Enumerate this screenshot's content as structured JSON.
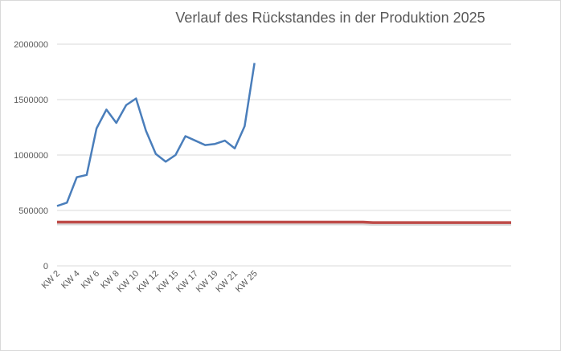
{
  "chart_data": {
    "type": "line",
    "title": "Verlauf des Rückstandes in der Produktion 2025",
    "categories": [
      "KW 2",
      null,
      "KW 4",
      null,
      "KW 6",
      null,
      "KW 8",
      null,
      "KW 10",
      null,
      "KW 12",
      null,
      "KW 15",
      null,
      "KW 17",
      null,
      "KW 19",
      null,
      "KW 21",
      null,
      "KW 25",
      null,
      null,
      null,
      null,
      null,
      null,
      null,
      null,
      null,
      null,
      null,
      null,
      null,
      null,
      null,
      null,
      null,
      null,
      null,
      null,
      null,
      null,
      null,
      null,
      null,
      null
    ],
    "series": [
      {
        "color": "#4a7ebb",
        "values": [
          540000,
          570000,
          800000,
          820000,
          1240000,
          1410000,
          1290000,
          1450000,
          1510000,
          1220000,
          1010000,
          940000,
          1000000,
          1170000,
          1130000,
          1090000,
          1100000,
          1130000,
          1060000,
          1260000,
          1830000,
          null,
          null,
          null,
          null,
          null,
          null,
          null,
          null,
          null,
          null,
          null,
          null,
          null,
          null,
          null,
          null,
          null,
          null,
          null,
          null,
          null,
          null,
          null,
          null,
          null,
          null
        ]
      },
      {
        "color": "#be4b48",
        "values": [
          395000,
          395000,
          395000,
          395000,
          395000,
          395000,
          395000,
          395000,
          395000,
          395000,
          395000,
          395000,
          395000,
          395000,
          395000,
          395000,
          395000,
          395000,
          395000,
          395000,
          395000,
          395000,
          395000,
          395000,
          395000,
          395000,
          395000,
          395000,
          395000,
          395000,
          395000,
          395000,
          390000,
          390000,
          390000,
          390000,
          390000,
          390000,
          390000,
          390000,
          390000,
          390000,
          390000,
          390000,
          390000,
          390000,
          390000
        ]
      }
    ],
    "ylim": [
      0,
      2000000
    ],
    "yticks": [
      0,
      500000,
      1000000,
      1500000,
      2000000
    ],
    "grid": true
  }
}
